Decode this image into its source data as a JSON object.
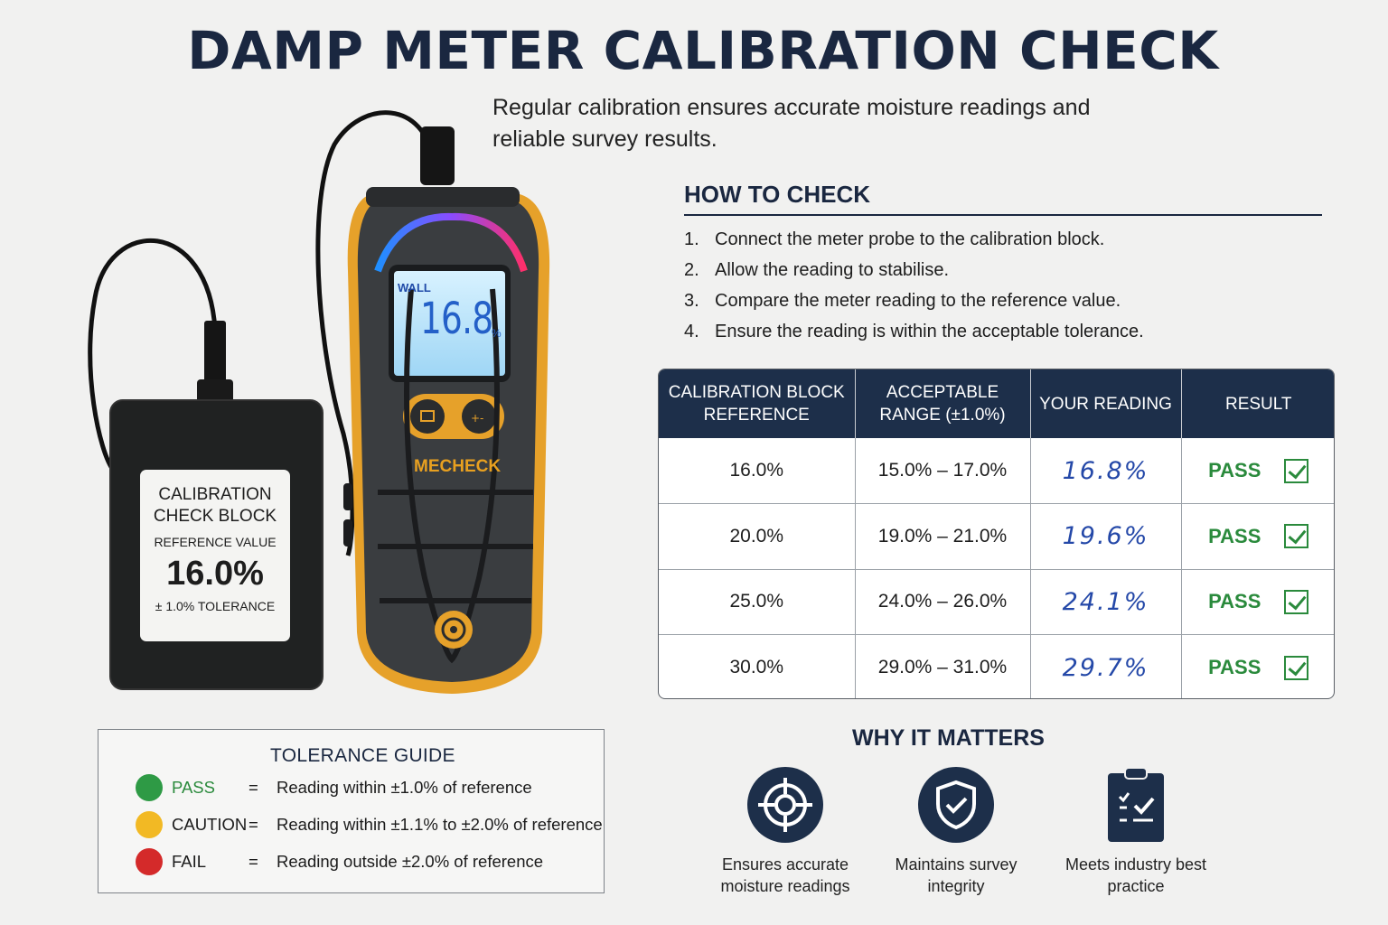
{
  "title": "DAMP METER CALIBRATION CHECK",
  "subtitle": "Regular calibration ensures accurate moisture readings and reliable survey results.",
  "how_to_check": {
    "title": "HOW TO CHECK",
    "steps": [
      {
        "num": "1.",
        "text": "Connect the meter probe to the calibration block."
      },
      {
        "num": "2.",
        "text": "Allow the reading to stabilise."
      },
      {
        "num": "3.",
        "text": "Compare the meter reading to the reference value."
      },
      {
        "num": "4.",
        "text": "Ensure the reading is within the acceptable tolerance."
      }
    ]
  },
  "table": {
    "headers": [
      "CALIBRATION BLOCK REFERENCE",
      "ACCEPTABLE RANGE (±1.0%)",
      "YOUR READING",
      "RESULT"
    ],
    "rows": [
      {
        "reference": "16.0%",
        "range": "15.0% – 17.0%",
        "reading": "16.8%",
        "result": "PASS"
      },
      {
        "reference": "20.0%",
        "range": "19.0% – 21.0%",
        "reading": "19.6%",
        "result": "PASS"
      },
      {
        "reference": "25.0%",
        "range": "24.0% – 26.0%",
        "reading": "24.1%",
        "result": "PASS"
      },
      {
        "reference": "30.0%",
        "range": "29.0% – 31.0%",
        "reading": "29.7%",
        "result": "PASS"
      }
    ]
  },
  "device": {
    "lcd_mode": "WALL",
    "lcd_value": "16.8",
    "lcd_unit": "%",
    "brand": "MECHECK",
    "block": {
      "title": "CALIBRATION CHECK BLOCK",
      "reference_label": "REFERENCE VALUE",
      "reference_value": "16.0%",
      "tolerance": "± 1.0% TOLERANCE"
    }
  },
  "tolerance_guide": {
    "title": "TOLERANCE GUIDE",
    "items": [
      {
        "label": "PASS",
        "eq": "=",
        "text": "Reading within ±1.0% of reference",
        "color": "#2e9a45",
        "label_color": "#2a8a3c"
      },
      {
        "label": "CAUTION",
        "eq": "=",
        "text": "Reading within ±1.1% to ±2.0% of reference",
        "color": "#f2b924",
        "label_color": "#1d1d1d"
      },
      {
        "label": "FAIL",
        "eq": "=",
        "text": "Reading outside ±2.0% of reference",
        "color": "#d42a2a",
        "label_color": "#1d1d1d"
      }
    ]
  },
  "why_it_matters": {
    "title": "WHY IT MATTERS",
    "items": [
      {
        "icon": "target-icon",
        "label": "Ensures accurate moisture readings"
      },
      {
        "icon": "shield-check-icon",
        "label": "Maintains survey integrity"
      },
      {
        "icon": "clipboard-check-icon",
        "label": "Meets industry best practice"
      }
    ]
  }
}
